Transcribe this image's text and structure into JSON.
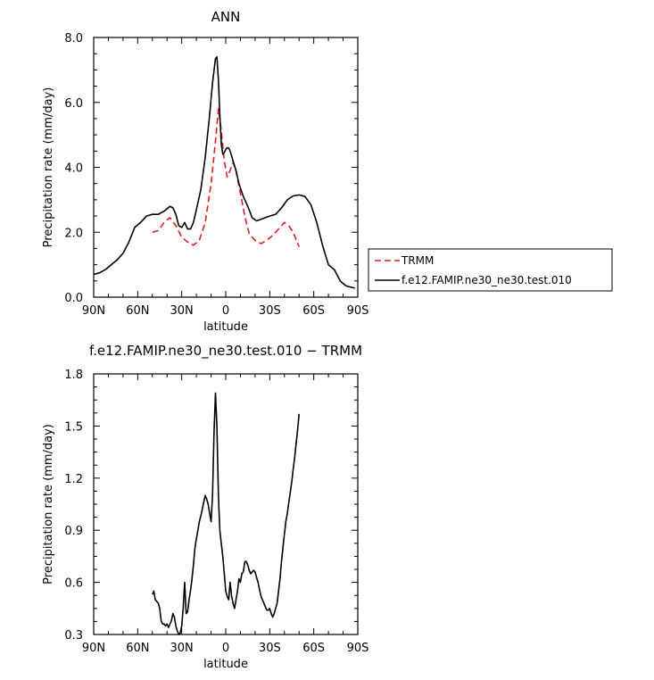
{
  "chart_data": [
    {
      "type": "line",
      "title": "ANN",
      "xlabel": "latitude",
      "ylabel": "Precipitation rate (mm/day)",
      "xlim": [
        90,
        -90
      ],
      "ylim": [
        0,
        8
      ],
      "xticks": [
        90,
        60,
        30,
        0,
        -30,
        -60,
        -90
      ],
      "xtick_labels": [
        "90N",
        "60N",
        "30N",
        "0",
        "30S",
        "60S",
        "90S"
      ],
      "yticks": [
        0,
        2,
        4,
        6,
        8
      ],
      "ytick_labels": [
        "0.0",
        "2.0",
        "4.0",
        "6.0",
        "8.0"
      ],
      "grid": false,
      "legend_position": "right",
      "series": [
        {
          "name": "TRMM",
          "color": "#e01e1e",
          "dash": "dashed",
          "x": [
            50,
            46,
            42,
            38,
            34,
            30,
            26,
            22,
            18,
            14,
            10,
            7,
            5,
            3,
            1,
            -1,
            -3,
            -5,
            -7,
            -10,
            -13,
            -16,
            -20,
            -24,
            -28,
            -32,
            -36,
            -40,
            -43,
            -46,
            -50
          ],
          "y": [
            2.0,
            2.05,
            2.3,
            2.45,
            2.2,
            1.85,
            1.7,
            1.6,
            1.75,
            2.3,
            3.5,
            4.8,
            5.8,
            5.1,
            4.2,
            3.7,
            3.9,
            4.15,
            3.9,
            3.2,
            2.5,
            1.95,
            1.75,
            1.65,
            1.75,
            1.9,
            2.1,
            2.3,
            2.2,
            2.0,
            1.55
          ]
        },
        {
          "name": "f.e12.FAMIP.ne30_ne30.test.010",
          "color": "#000000",
          "dash": "solid",
          "x": [
            90,
            86,
            82,
            78,
            74,
            70,
            66,
            62,
            58,
            54,
            50,
            46,
            42,
            38,
            36,
            34,
            32,
            30,
            28,
            26,
            24,
            22,
            20,
            17,
            14,
            11,
            9,
            7,
            6,
            5,
            4,
            3,
            2,
            1,
            0,
            -1,
            -2,
            -3,
            -5,
            -7,
            -9,
            -12,
            -15,
            -18,
            -21,
            -24,
            -27,
            -30,
            -34,
            -38,
            -42,
            -46,
            -50,
            -54,
            -58,
            -62,
            -66,
            -70,
            -74,
            -78,
            -82,
            -86,
            -88
          ],
          "y": [
            0.7,
            0.75,
            0.85,
            1.0,
            1.15,
            1.35,
            1.7,
            2.15,
            2.3,
            2.5,
            2.55,
            2.55,
            2.65,
            2.8,
            2.75,
            2.55,
            2.2,
            2.15,
            2.3,
            2.1,
            2.1,
            2.3,
            2.7,
            3.3,
            4.3,
            5.6,
            6.6,
            7.35,
            7.4,
            6.7,
            5.6,
            4.7,
            4.4,
            4.45,
            4.55,
            4.6,
            4.6,
            4.5,
            4.2,
            3.9,
            3.5,
            3.1,
            2.8,
            2.45,
            2.35,
            2.4,
            2.45,
            2.5,
            2.55,
            2.75,
            3.0,
            3.12,
            3.15,
            3.1,
            2.85,
            2.3,
            1.6,
            1.0,
            0.85,
            0.5,
            0.35,
            0.3,
            0.28
          ]
        }
      ]
    },
    {
      "type": "line",
      "title": "f.e12.FAMIP.ne30_ne30.test.010 − TRMM",
      "xlabel": "latitude",
      "ylabel": "Precipitation rate (mm/day)",
      "xlim": [
        90,
        -90
      ],
      "ylim": [
        0.3,
        1.8
      ],
      "xticks": [
        90,
        60,
        30,
        0,
        -30,
        -60,
        -90
      ],
      "xtick_labels": [
        "90N",
        "60N",
        "30N",
        "0",
        "30S",
        "60S",
        "90S"
      ],
      "yticks": [
        0.3,
        0.6,
        0.9,
        1.2,
        1.5,
        1.8
      ],
      "ytick_labels": [
        "0.3",
        "0.6",
        "0.9",
        "1.2",
        "1.5",
        "1.8"
      ],
      "grid": false,
      "series": [
        {
          "color": "#000000",
          "dash": "solid",
          "x": [
            50,
            49,
            48,
            47,
            46,
            45,
            44,
            43,
            42,
            41,
            40,
            39,
            38,
            37,
            36,
            35,
            34,
            33,
            32,
            31,
            30,
            29,
            28,
            27,
            26,
            25,
            24,
            23,
            22,
            21,
            20,
            19,
            18,
            17,
            16,
            15,
            14,
            13,
            12,
            11,
            10,
            9,
            8,
            7,
            6,
            5,
            4,
            3,
            2,
            1,
            0,
            -1,
            -2,
            -3,
            -4,
            -5,
            -6,
            -7,
            -8,
            -9,
            -10,
            -11,
            -12,
            -13,
            -14,
            -15,
            -16,
            -17,
            -18,
            -19,
            -20,
            -21,
            -22,
            -23,
            -24,
            -25,
            -26,
            -27,
            -28,
            -29,
            -30,
            -31,
            -32,
            -33,
            -34,
            -35,
            -36,
            -37,
            -38,
            -39,
            -40,
            -41,
            -42,
            -43,
            -44,
            -45,
            -46,
            -47,
            -48,
            -49,
            -50
          ],
          "y": [
            0.53,
            0.55,
            0.5,
            0.49,
            0.48,
            0.45,
            0.38,
            0.36,
            0.36,
            0.35,
            0.36,
            0.34,
            0.36,
            0.38,
            0.42,
            0.4,
            0.35,
            0.32,
            0.3,
            0.31,
            0.35,
            0.45,
            0.6,
            0.42,
            0.43,
            0.5,
            0.55,
            0.62,
            0.7,
            0.8,
            0.85,
            0.9,
            0.95,
            0.98,
            1.02,
            1.06,
            1.1,
            1.08,
            1.05,
            1.0,
            0.95,
            1.1,
            1.45,
            1.69,
            1.5,
            1.1,
            0.9,
            0.82,
            0.75,
            0.65,
            0.55,
            0.52,
            0.5,
            0.6,
            0.52,
            0.48,
            0.45,
            0.5,
            0.55,
            0.62,
            0.6,
            0.65,
            0.66,
            0.72,
            0.72,
            0.7,
            0.67,
            0.65,
            0.66,
            0.67,
            0.66,
            0.63,
            0.6,
            0.56,
            0.52,
            0.5,
            0.48,
            0.46,
            0.44,
            0.44,
            0.45,
            0.42,
            0.4,
            0.42,
            0.45,
            0.48,
            0.55,
            0.62,
            0.72,
            0.8,
            0.88,
            0.95,
            1.0,
            1.06,
            1.12,
            1.18,
            1.25,
            1.32,
            1.4,
            1.48,
            1.57
          ]
        }
      ]
    }
  ]
}
